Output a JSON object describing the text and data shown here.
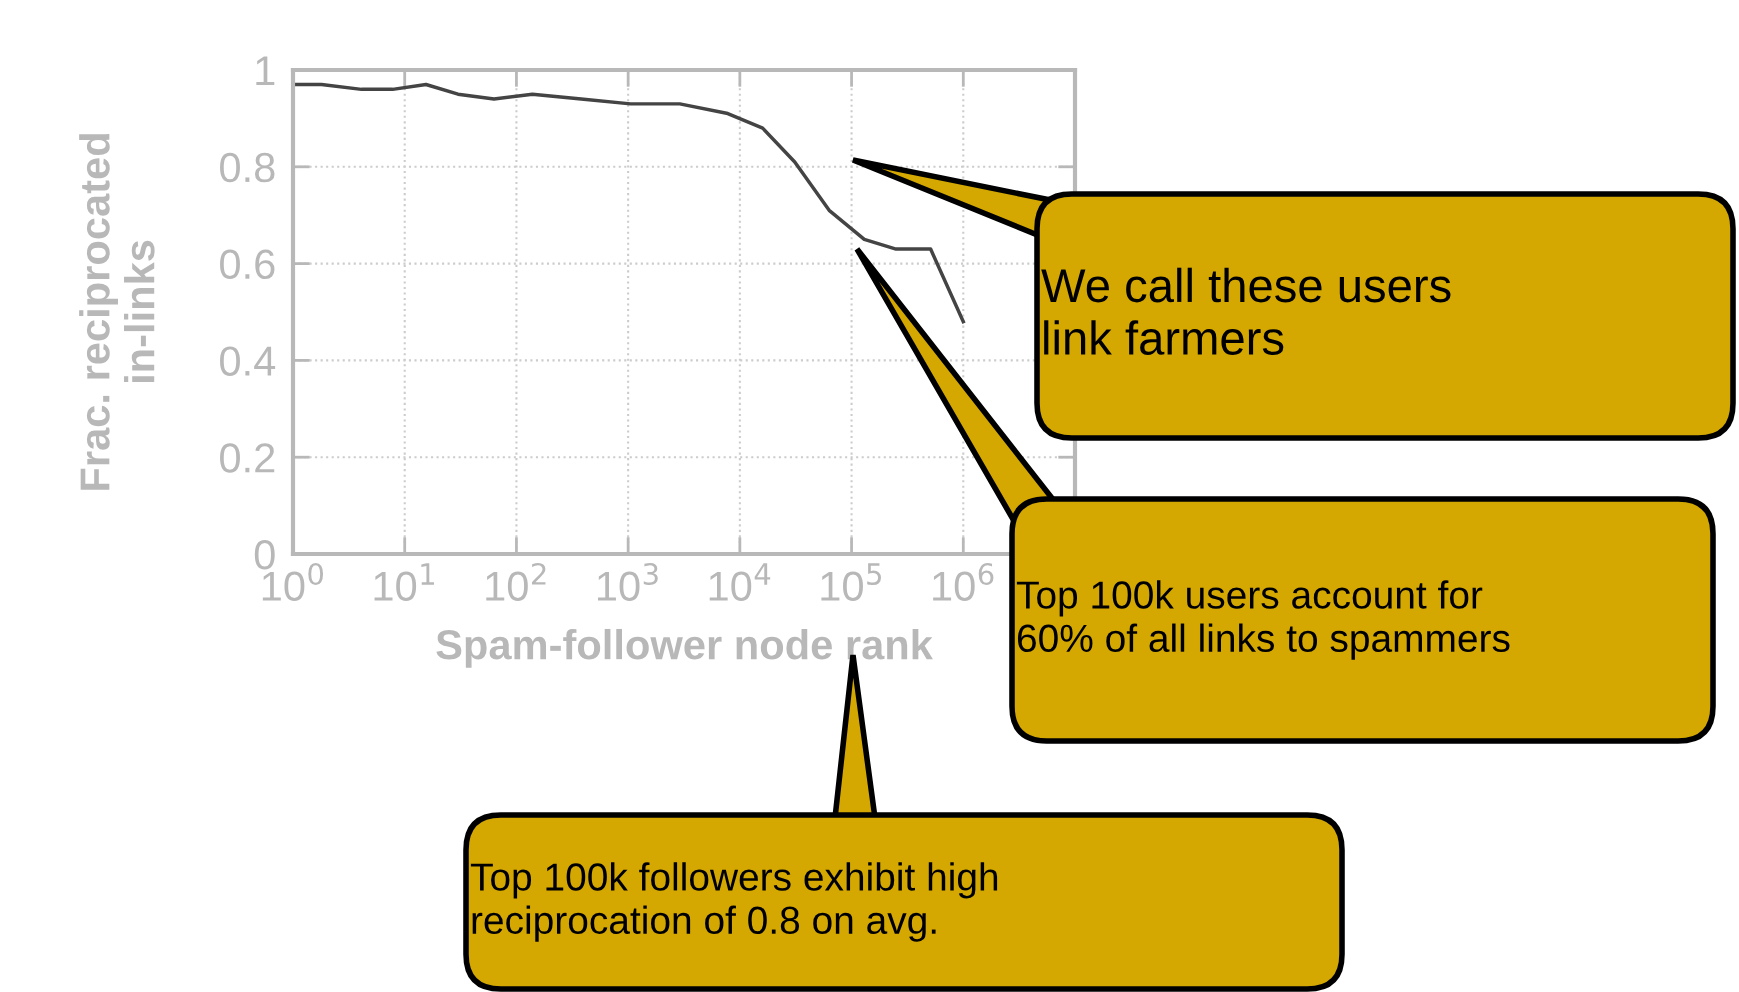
{
  "chart_data": {
    "type": "line",
    "xlabel": "Spam-follower node rank",
    "ylabel": "Frac. reciprocated\nin-links",
    "log": "x",
    "grid": true,
    "marker": "none",
    "line_style": "solid",
    "xlim": [
      1,
      10000000
    ],
    "xticks": [
      {
        "value": 1,
        "label": "10$^{0}$"
      },
      {
        "value": 10,
        "label": "10$^{1}$"
      },
      {
        "value": 100,
        "label": "10$^{2}$"
      },
      {
        "value": 1000,
        "label": "10$^{3}$"
      },
      {
        "value": 10000,
        "label": "10$^{4}$"
      },
      {
        "value": 100000,
        "label": "10$^{5}$"
      },
      {
        "value": 1000000,
        "label": "10$^{6}$"
      }
    ],
    "ylim": [
      0,
      1
    ],
    "yticks": [
      0,
      0.2,
      0.4,
      0.6,
      0.8,
      1
    ],
    "x": [
      1,
      1.8,
      4.1,
      7.8,
      15.5,
      30,
      63,
      139,
      380,
      1050,
      2900,
      7800,
      16000,
      31000,
      63000,
      130000,
      250000,
      510000,
      1000000
    ],
    "series": [
      {
        "color": "#444444",
        "values": [
          0.97,
          0.97,
          0.96,
          0.96,
          0.97,
          0.95,
          0.94,
          0.95,
          0.94,
          0.93,
          0.93,
          0.91,
          0.88,
          0.81,
          0.71,
          0.65,
          0.63,
          0.63,
          0.48
        ]
      }
    ],
    "annotations": [
      "We call these users\nlink farmers",
      "Top 100k users account for\n60% of all links to spammers",
      "Top 100k followers exhibit high\nreciprocation of 0.8 on avg."
    ]
  }
}
